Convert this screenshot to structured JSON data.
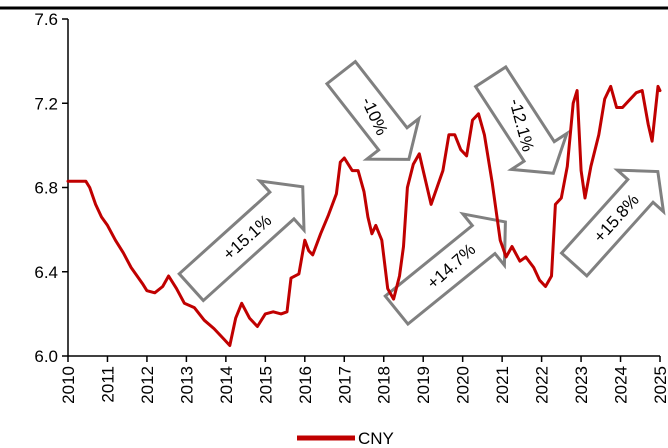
{
  "chart_data": {
    "type": "line",
    "title": "",
    "xlabel": "",
    "ylabel": "",
    "ylim": [
      6.0,
      7.6
    ],
    "xlim": [
      2010,
      2025
    ],
    "y_ticks": [
      "6.0",
      "6.4",
      "6.8",
      "7.2",
      "7.6"
    ],
    "x_ticks": [
      "2010",
      "2011",
      "2012",
      "2013",
      "2014",
      "2015",
      "2016",
      "2017",
      "2018",
      "2019",
      "2020",
      "2021",
      "2022",
      "2023",
      "2024",
      "2025"
    ],
    "legend_position": "bottom-center",
    "grid": false,
    "series": [
      {
        "name": "CNY",
        "color": "#c00000",
        "points": [
          [
            2010.0,
            6.83
          ],
          [
            2010.2,
            6.83
          ],
          [
            2010.45,
            6.83
          ],
          [
            2010.55,
            6.8
          ],
          [
            2010.7,
            6.72
          ],
          [
            2010.85,
            6.66
          ],
          [
            2011.0,
            6.62
          ],
          [
            2011.2,
            6.55
          ],
          [
            2011.4,
            6.49
          ],
          [
            2011.6,
            6.42
          ],
          [
            2011.75,
            6.38
          ],
          [
            2011.9,
            6.34
          ],
          [
            2012.0,
            6.31
          ],
          [
            2012.2,
            6.3
          ],
          [
            2012.4,
            6.33
          ],
          [
            2012.55,
            6.38
          ],
          [
            2012.75,
            6.32
          ],
          [
            2012.95,
            6.25
          ],
          [
            2013.2,
            6.23
          ],
          [
            2013.45,
            6.17
          ],
          [
            2013.7,
            6.13
          ],
          [
            2013.95,
            6.08
          ],
          [
            2014.1,
            6.05
          ],
          [
            2014.25,
            6.18
          ],
          [
            2014.4,
            6.25
          ],
          [
            2014.6,
            6.18
          ],
          [
            2014.8,
            6.14
          ],
          [
            2015.0,
            6.2
          ],
          [
            2015.2,
            6.21
          ],
          [
            2015.4,
            6.2
          ],
          [
            2015.55,
            6.21
          ],
          [
            2015.65,
            6.37
          ],
          [
            2015.85,
            6.39
          ],
          [
            2016.0,
            6.55
          ],
          [
            2016.1,
            6.5
          ],
          [
            2016.2,
            6.48
          ],
          [
            2016.4,
            6.58
          ],
          [
            2016.6,
            6.67
          ],
          [
            2016.8,
            6.77
          ],
          [
            2016.9,
            6.92
          ],
          [
            2017.0,
            6.94
          ],
          [
            2017.2,
            6.88
          ],
          [
            2017.35,
            6.88
          ],
          [
            2017.5,
            6.78
          ],
          [
            2017.6,
            6.66
          ],
          [
            2017.7,
            6.58
          ],
          [
            2017.8,
            6.62
          ],
          [
            2017.95,
            6.55
          ],
          [
            2018.1,
            6.32
          ],
          [
            2018.25,
            6.27
          ],
          [
            2018.4,
            6.38
          ],
          [
            2018.5,
            6.52
          ],
          [
            2018.6,
            6.8
          ],
          [
            2018.75,
            6.91
          ],
          [
            2018.9,
            6.96
          ],
          [
            2019.0,
            6.88
          ],
          [
            2019.2,
            6.72
          ],
          [
            2019.35,
            6.8
          ],
          [
            2019.5,
            6.88
          ],
          [
            2019.65,
            7.05
          ],
          [
            2019.8,
            7.05
          ],
          [
            2019.95,
            6.98
          ],
          [
            2020.1,
            6.95
          ],
          [
            2020.25,
            7.12
          ],
          [
            2020.4,
            7.15
          ],
          [
            2020.55,
            7.05
          ],
          [
            2020.75,
            6.82
          ],
          [
            2020.95,
            6.55
          ],
          [
            2021.1,
            6.47
          ],
          [
            2021.25,
            6.52
          ],
          [
            2021.45,
            6.45
          ],
          [
            2021.6,
            6.47
          ],
          [
            2021.8,
            6.42
          ],
          [
            2021.95,
            6.36
          ],
          [
            2022.1,
            6.33
          ],
          [
            2022.25,
            6.38
          ],
          [
            2022.35,
            6.72
          ],
          [
            2022.5,
            6.75
          ],
          [
            2022.65,
            6.9
          ],
          [
            2022.8,
            7.2
          ],
          [
            2022.9,
            7.26
          ],
          [
            2023.0,
            6.88
          ],
          [
            2023.1,
            6.75
          ],
          [
            2023.25,
            6.9
          ],
          [
            2023.45,
            7.05
          ],
          [
            2023.6,
            7.22
          ],
          [
            2023.75,
            7.28
          ],
          [
            2023.9,
            7.18
          ],
          [
            2024.05,
            7.18
          ],
          [
            2024.2,
            7.21
          ],
          [
            2024.4,
            7.25
          ],
          [
            2024.55,
            7.26
          ],
          [
            2024.7,
            7.1
          ],
          [
            2024.8,
            7.02
          ],
          [
            2024.95,
            7.28
          ],
          [
            2025.0,
            7.26
          ]
        ]
      }
    ],
    "annotations": [
      {
        "label": "+15.1%",
        "direction": "up"
      },
      {
        "label": "-10%",
        "direction": "down"
      },
      {
        "label": "+14.7%",
        "direction": "up"
      },
      {
        "label": "-12.1%",
        "direction": "down"
      },
      {
        "label": "+15.8%",
        "direction": "up"
      }
    ]
  }
}
